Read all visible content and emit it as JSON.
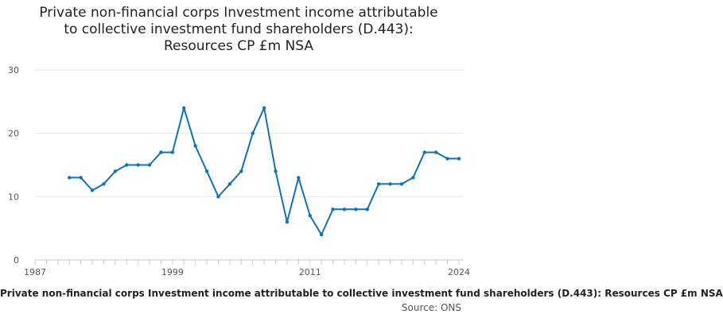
{
  "chart_data": {
    "type": "line",
    "title_lines": [
      "Private non-financial corps Investment income attributable",
      "to collective investment fund shareholders (D.443):",
      "Resources CP £m NSA"
    ],
    "xlabel": "",
    "ylabel": "",
    "x_tick_labels": [
      "1987",
      "1999",
      "2011",
      "2024"
    ],
    "y_tick_labels": [
      "0",
      "10",
      "20",
      "30"
    ],
    "xlim": [
      1987,
      2024
    ],
    "ylim": [
      0,
      30
    ],
    "grid": "horizontal",
    "line_color": "#0f73b9",
    "x": [
      1990,
      1991,
      1992,
      1993,
      1994,
      1995,
      1996,
      1997,
      1998,
      1999,
      2000,
      2001,
      2002,
      2003,
      2004,
      2005,
      2006,
      2007,
      2008,
      2009,
      2010,
      2011,
      2012,
      2013,
      2014,
      2015,
      2016,
      2017,
      2018,
      2019,
      2020,
      2021,
      2022,
      2023,
      2024
    ],
    "values": [
      13,
      13,
      11,
      12,
      14,
      15,
      15,
      15,
      17,
      17,
      24,
      18,
      14,
      10,
      12,
      14,
      20,
      24,
      14,
      6,
      13,
      7,
      4,
      8,
      8,
      8,
      8,
      12,
      12,
      12,
      13,
      17,
      17,
      16,
      16
    ]
  },
  "footer": {
    "series_name": "Private non-financial corps Investment income attributable to collective investment fund shareholders (D.443): Resources CP £m NSA",
    "source": "Source: ONS"
  }
}
